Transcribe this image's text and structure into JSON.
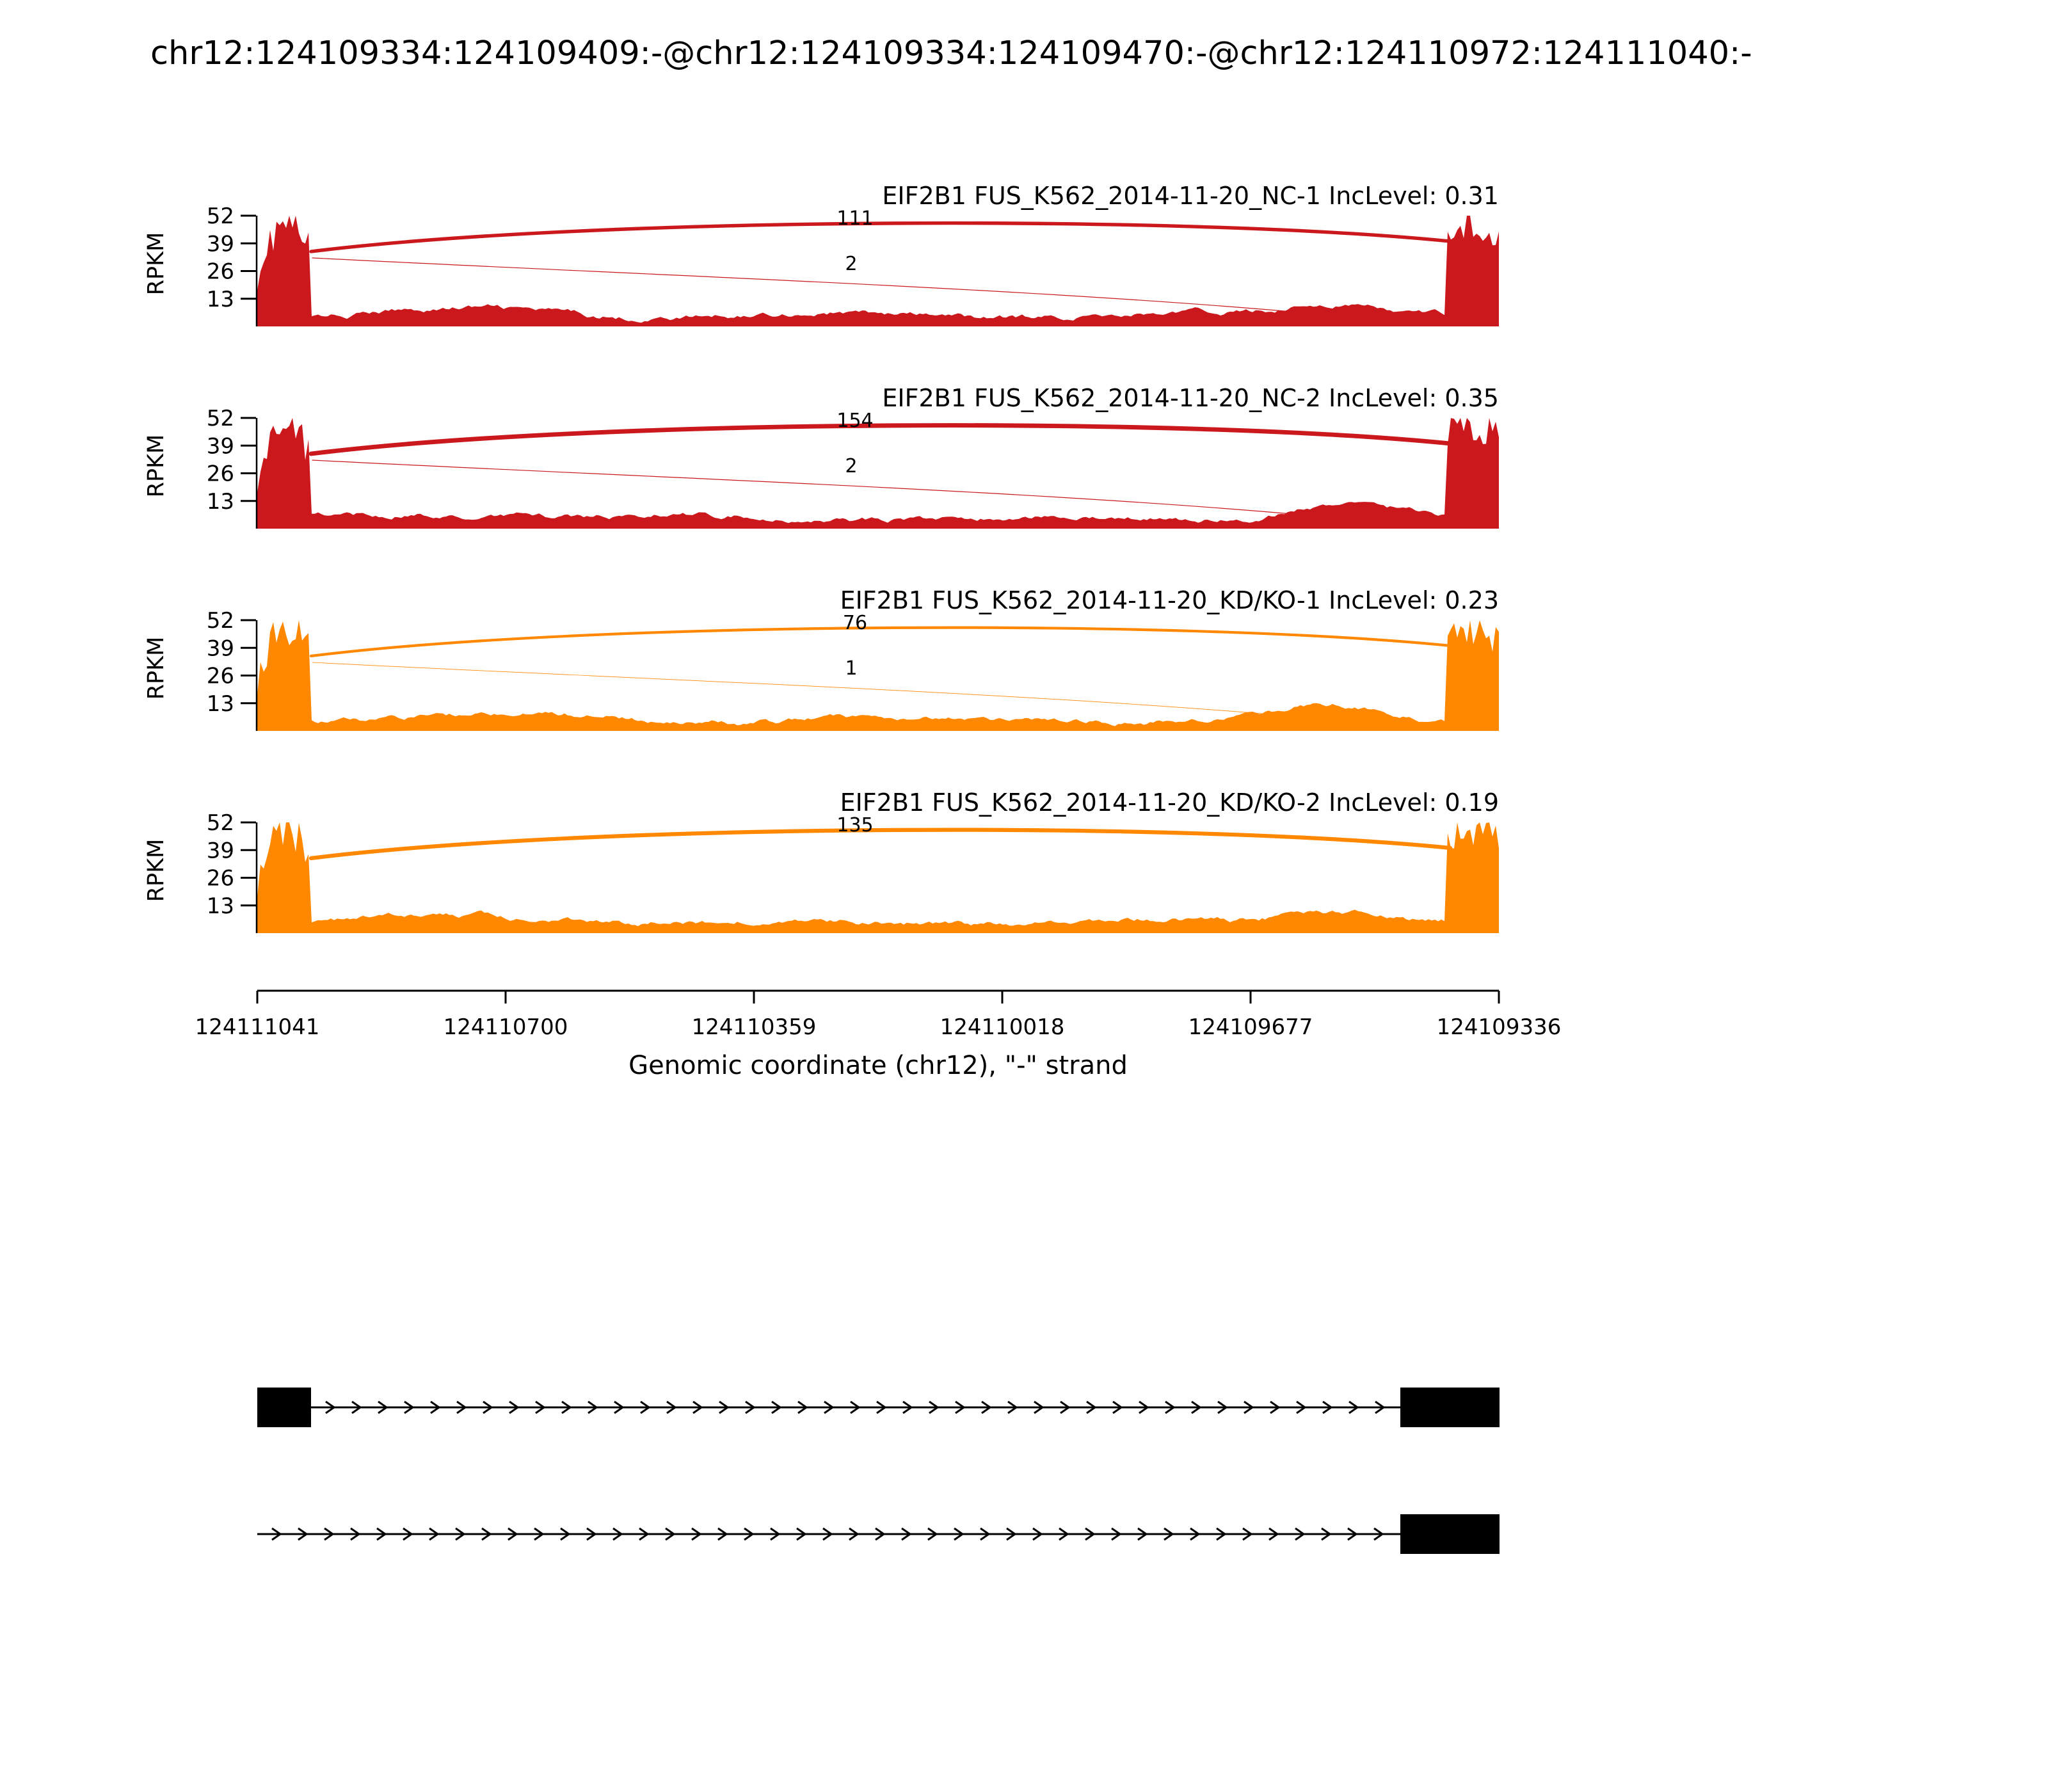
{
  "title": "chr12:124109334:124109409:-@chr12:124109334:124109470:-@chr12:124110972:124111040:-",
  "chart_data": {
    "type": "sashimi",
    "gene": "EIF2B1",
    "chromosome": "chr12",
    "strand": "-",
    "ylabel": "RPKM",
    "yticks": [
      52,
      39,
      26,
      13
    ],
    "ylim": [
      0,
      52
    ],
    "xlabel": "Genomic coordinate (chr12), \"-\" strand",
    "xticks": [
      124111041,
      124110700,
      124110359,
      124110018,
      124109677,
      124109336
    ],
    "x_axis_reversed": true,
    "colors": {
      "negative_control": "#CB181D",
      "knockdown": "#FF8800"
    },
    "tracks": [
      {
        "label": "EIF2B1 FUS_K562_2014-11-20_NC-1 IncLevel: 0.31",
        "sample": "FUS_K562_2014-11-20_NC-1",
        "inc_level": 0.31,
        "color": "#CB181D",
        "junctions": [
          {
            "count": 111
          },
          {
            "count": 2
          }
        ]
      },
      {
        "label": "EIF2B1 FUS_K562_2014-11-20_NC-2 IncLevel: 0.35",
        "sample": "FUS_K562_2014-11-20_NC-2",
        "inc_level": 0.35,
        "color": "#CB181D",
        "junctions": [
          {
            "count": 154
          },
          {
            "count": 2
          }
        ]
      },
      {
        "label": "EIF2B1 FUS_K562_2014-11-20_KD/KO-1 IncLevel: 0.23",
        "sample": "FUS_K562_2014-11-20_KD/KO-1",
        "inc_level": 0.23,
        "color": "#FF8800",
        "junctions": [
          {
            "count": 76
          },
          {
            "count": 1
          }
        ]
      },
      {
        "label": "EIF2B1 FUS_K562_2014-11-20_KD/KO-2 IncLevel: 0.19",
        "sample": "FUS_K562_2014-11-20_KD/KO-2",
        "inc_level": 0.19,
        "color": "#FF8800",
        "junctions": [
          {
            "count": 135
          }
        ]
      }
    ],
    "transcripts": [
      {
        "exons": [
          [
            124111040,
            124110972
          ],
          [
            124109470,
            124109334
          ]
        ],
        "strand": "-"
      },
      {
        "exons": [
          [
            124109470,
            124109334
          ]
        ],
        "strand": "-"
      }
    ]
  }
}
